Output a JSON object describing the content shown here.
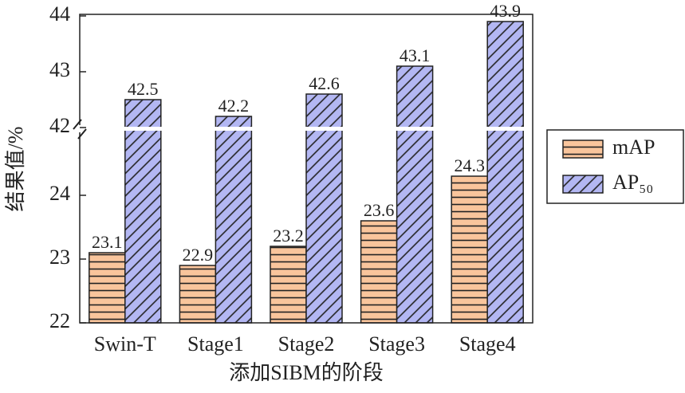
{
  "chart_data": {
    "type": "bar",
    "x_label": "添加SIBM的阶段",
    "y_label": "结果值/%",
    "categories": [
      "Swin-T",
      "Stage1",
      "Stage2",
      "Stage3",
      "Stage4"
    ],
    "series": [
      {
        "name": "mAP",
        "color": "#f9c59c",
        "segment": "lower",
        "values": [
          23.1,
          22.9,
          23.2,
          23.6,
          24.3
        ]
      },
      {
        "name": "AP₅₀",
        "color": "#b3b7f3",
        "segment": "upper",
        "values": [
          42.5,
          42.2,
          42.6,
          43.1,
          43.9
        ]
      }
    ],
    "axis_break": {
      "lower": {
        "ylim": [
          22,
          25
        ],
        "yticks": [
          22,
          23,
          24
        ]
      },
      "upper": {
        "ylim": [
          42,
          44
        ],
        "yticks": [
          42,
          43,
          44
        ]
      }
    },
    "legend": "right"
  }
}
